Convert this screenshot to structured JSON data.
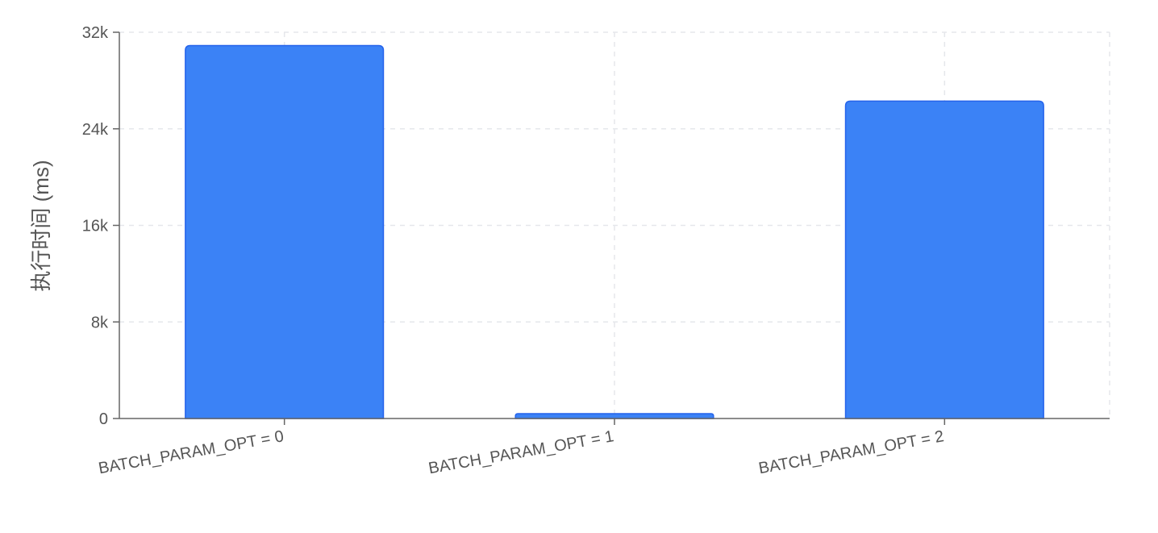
{
  "chart_data": {
    "type": "bar",
    "title": "",
    "xlabel": "",
    "ylabel": "执行时间 (ms)",
    "categories": [
      "BATCH_PARAM_OPT = 0",
      "BATCH_PARAM_OPT = 1",
      "BATCH_PARAM_OPT = 2"
    ],
    "values": [
      30900,
      400,
      26300
    ],
    "ylim": [
      0,
      32000
    ],
    "yticks": [
      0,
      8000,
      16000,
      24000,
      32000
    ],
    "ytick_labels": [
      "0",
      "8k",
      "16k",
      "24k",
      "32k"
    ],
    "grid": true,
    "legend": "none",
    "colors": {
      "bar_fill": "#3b82f6",
      "bar_stroke": "#2563eb",
      "grid": "#e5e7eb",
      "axis": "#666666",
      "text": "#555555"
    }
  }
}
